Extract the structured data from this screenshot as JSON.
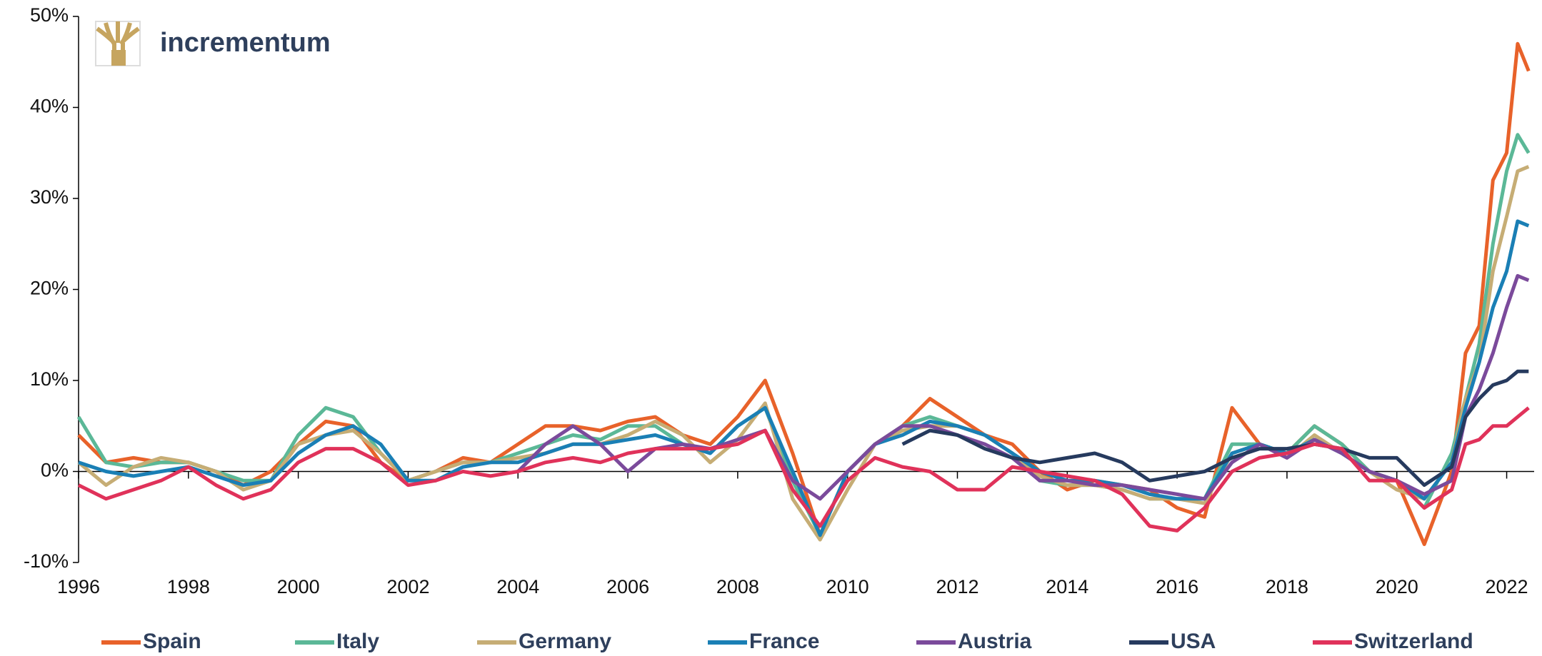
{
  "logo": "incrementum",
  "chart_data": {
    "type": "line",
    "x": [
      1996,
      1996.5,
      1997,
      1997.5,
      1998,
      1998.5,
      1999,
      1999.5,
      2000,
      2000.5,
      2001,
      2001.5,
      2002,
      2002.5,
      2003,
      2003.5,
      2004,
      2004.5,
      2005,
      2005.5,
      2006,
      2006.5,
      2007,
      2007.5,
      2008,
      2008.5,
      2009,
      2009.5,
      2010,
      2010.5,
      2011,
      2011.5,
      2012,
      2012.5,
      2013,
      2013.5,
      2014,
      2014.5,
      2015,
      2015.5,
      2016,
      2016.5,
      2017,
      2017.5,
      2018,
      2018.5,
      2019,
      2019.5,
      2020,
      2020.5,
      2021,
      2021.25,
      2021.5,
      2021.75,
      2022,
      2022.2,
      2022.4
    ],
    "series": [
      {
        "name": "Spain",
        "color": "#e8622a",
        "values": [
          4,
          1,
          1.5,
          1,
          1,
          0,
          -1.5,
          0,
          3,
          5.5,
          5,
          1,
          -1,
          0,
          1.5,
          1,
          3,
          5,
          5,
          4.5,
          5.5,
          6,
          4,
          3,
          6,
          10,
          2,
          -7,
          0,
          3,
          5,
          8,
          6,
          4,
          3,
          0,
          -2,
          -1,
          -1.5,
          -2,
          -4,
          -5,
          7,
          3,
          2,
          5,
          3,
          0,
          -1,
          -8,
          0,
          13,
          16,
          32,
          35,
          47,
          44
        ]
      },
      {
        "name": "Italy",
        "color": "#5bb897",
        "values": [
          6,
          1,
          0.5,
          1,
          1,
          0,
          -1,
          -1,
          4,
          7,
          6,
          2,
          -1,
          0,
          1,
          1,
          2,
          3,
          4,
          3.5,
          5,
          5,
          3,
          2,
          5,
          7,
          -1,
          -7,
          0,
          3,
          5,
          6,
          5,
          4,
          2,
          -1,
          -1.5,
          -1.5,
          -2,
          -3,
          -3,
          -3,
          3,
          3,
          2,
          5,
          3,
          0,
          -1,
          -4,
          2,
          8,
          14,
          25,
          33,
          37,
          35
        ]
      },
      {
        "name": "Germany",
        "color": "#c6ad75",
        "values": [
          1,
          -1.5,
          0.5,
          1.5,
          1,
          0,
          -2,
          -1,
          3,
          4,
          4.5,
          2,
          -1,
          0,
          1,
          1,
          1.5,
          2,
          3,
          3,
          4,
          5.5,
          4,
          1,
          3.5,
          7.5,
          -3,
          -7.5,
          -2,
          3,
          4.5,
          5,
          5,
          4,
          2,
          -0.5,
          -1.5,
          -1.5,
          -2,
          -3,
          -3,
          -3.5,
          2,
          3,
          1.5,
          4,
          2,
          0,
          -2,
          -3,
          1,
          8,
          12,
          22,
          28,
          33,
          33.5
        ]
      },
      {
        "name": "France",
        "color": "#1a7fb5",
        "values": [
          1,
          0,
          -0.5,
          0,
          0.5,
          -0.5,
          -1.5,
          -1,
          2,
          4,
          5,
          3,
          -1,
          -1,
          0.5,
          1,
          1,
          2,
          3,
          3,
          3.5,
          4,
          3,
          2,
          5,
          7,
          0,
          -7,
          0,
          3,
          4,
          5.5,
          5,
          4,
          2,
          0,
          -1,
          -1,
          -1.5,
          -2.5,
          -3,
          -3,
          2,
          3,
          2,
          3.5,
          2,
          0,
          -1,
          -3,
          1,
          7,
          12,
          18,
          22,
          27.5,
          27
        ]
      },
      {
        "name": "Austria",
        "color": "#7b4a9b",
        "values": [
          null,
          null,
          null,
          null,
          null,
          null,
          null,
          null,
          null,
          null,
          null,
          null,
          null,
          null,
          null,
          null,
          0,
          3,
          5,
          3,
          0,
          2.5,
          3,
          2.5,
          3.5,
          4.5,
          -1,
          -3,
          0,
          3,
          5,
          5,
          4,
          3,
          1.5,
          -1,
          -1,
          -1.5,
          -1.5,
          -2,
          -2.5,
          -3,
          1,
          3,
          1.5,
          3.5,
          2,
          0,
          -1,
          -2.5,
          -1,
          6,
          9,
          13,
          18,
          21.5,
          21
        ]
      },
      {
        "name": "USA",
        "color": "#263a5e",
        "values": [
          null,
          null,
          null,
          null,
          null,
          null,
          null,
          null,
          null,
          null,
          null,
          null,
          null,
          null,
          null,
          null,
          null,
          null,
          null,
          null,
          null,
          null,
          null,
          null,
          null,
          null,
          null,
          null,
          null,
          null,
          3,
          4.5,
          4,
          2.5,
          1.5,
          1,
          1.5,
          2,
          1,
          -1,
          -0.5,
          0,
          1.5,
          2.5,
          2.5,
          3,
          2.5,
          1.5,
          1.5,
          -1.5,
          0.5,
          6,
          8,
          9.5,
          10,
          11,
          11
        ]
      },
      {
        "name": "Switzerland",
        "color": "#e0325a",
        "values": [
          -1.5,
          -3,
          -2,
          -1,
          0.5,
          -1.5,
          -3,
          -2,
          1,
          2.5,
          2.5,
          1,
          -1.5,
          -1,
          0,
          -0.5,
          0,
          1,
          1.5,
          1,
          2,
          2.5,
          2.5,
          2.5,
          3,
          4.5,
          -2,
          -6,
          -1,
          1.5,
          0.5,
          0,
          -2,
          -2,
          0.5,
          0,
          -0.5,
          -1,
          -2.5,
          -6,
          -6.5,
          -4,
          0,
          1.5,
          2,
          3,
          2.5,
          -1,
          -1,
          -4,
          -2,
          3,
          3.5,
          5,
          5,
          6,
          7
        ]
      }
    ],
    "xlim": [
      1996,
      2022.5
    ],
    "xticks": [
      1996,
      1998,
      2000,
      2002,
      2004,
      2006,
      2008,
      2010,
      2012,
      2014,
      2016,
      2018,
      2020,
      2022
    ],
    "ylim": [
      -10,
      50
    ],
    "yticks": [
      {
        "value": -10,
        "label": "-10%"
      },
      {
        "value": 0,
        "label": "0%"
      },
      {
        "value": 10,
        "label": "10%"
      },
      {
        "value": 20,
        "label": "20%"
      },
      {
        "value": 30,
        "label": "30%"
      },
      {
        "value": 40,
        "label": "40%"
      },
      {
        "value": 50,
        "label": "50%"
      }
    ]
  }
}
